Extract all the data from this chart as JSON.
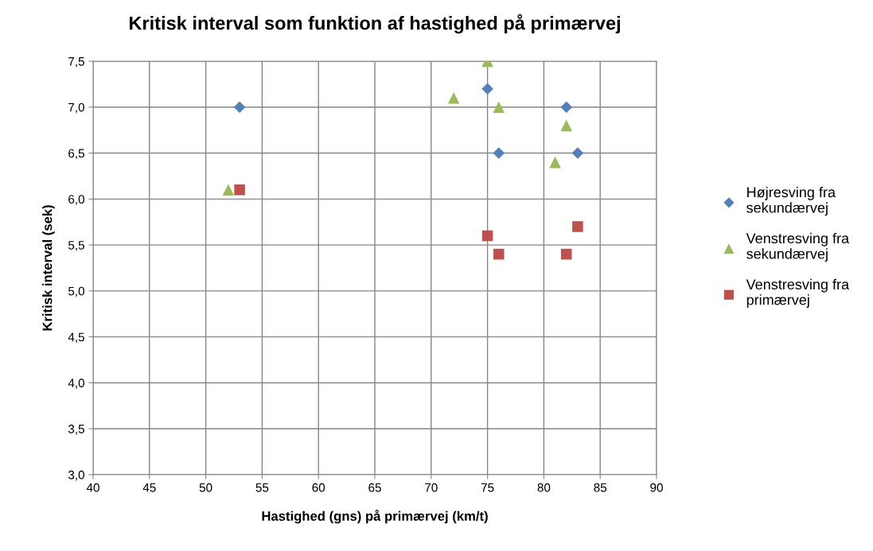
{
  "chart_data": {
    "type": "scatter",
    "title": "Kritisk interval som funktion af hastighed på primærvej",
    "xlabel": "Hastighed (gns) på primærvej (km/t)",
    "ylabel": "Kritisk interval (sek)",
    "xlim": [
      40,
      90
    ],
    "xticks": [
      40,
      45,
      50,
      55,
      60,
      65,
      70,
      75,
      80,
      85,
      90
    ],
    "ylim": [
      3.0,
      7.5
    ],
    "yticks": [
      {
        "value": 3.0,
        "label": "3,0"
      },
      {
        "value": 3.5,
        "label": "3,5"
      },
      {
        "value": 4.0,
        "label": "4,0"
      },
      {
        "value": 4.5,
        "label": "4,5"
      },
      {
        "value": 5.0,
        "label": "5,0"
      },
      {
        "value": 5.5,
        "label": "5,5"
      },
      {
        "value": 6.0,
        "label": "6,0"
      },
      {
        "value": 6.5,
        "label": "6,5"
      },
      {
        "value": 7.0,
        "label": "7,0"
      },
      {
        "value": 7.5,
        "label": "7,5"
      }
    ],
    "grid": true,
    "legend": "right",
    "series": [
      {
        "name": "Højresving fra sekundærvej",
        "color": "#4f81bd",
        "marker": "diamond",
        "x": [
          53,
          75,
          76,
          82,
          83
        ],
        "values": [
          7.0,
          7.2,
          6.5,
          7.0,
          6.5
        ]
      },
      {
        "name": "Venstresving fra sekundærvej",
        "color": "#9bbb59",
        "marker": "triangle",
        "x": [
          52,
          72,
          75,
          76,
          81,
          82
        ],
        "values": [
          6.1,
          7.1,
          7.5,
          7.0,
          6.4,
          6.8
        ]
      },
      {
        "name": "Venstresving fra primærvej",
        "color": "#c0504d",
        "marker": "square",
        "x": [
          53,
          75,
          76,
          82,
          83
        ],
        "values": [
          6.1,
          5.6,
          5.4,
          5.4,
          5.7
        ]
      }
    ]
  }
}
